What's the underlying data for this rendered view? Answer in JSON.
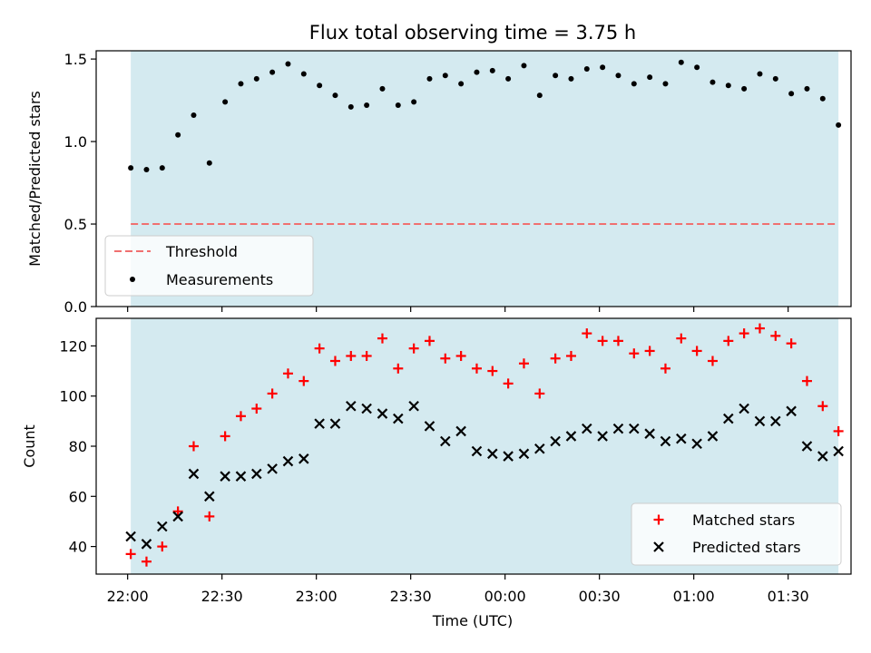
{
  "chart_data": [
    {
      "panel": "top",
      "type": "scatter",
      "title": "Flux total observing time = 3.75 h",
      "ylabel": "Matched/Predicted stars",
      "xlabel": "",
      "x_unit": "time (UTC)",
      "xlim": [
        "21:50",
        "01:50"
      ],
      "ylim": [
        0,
        1.55
      ],
      "yticks": [
        "0.0",
        "0.5",
        "1.0",
        "1.5"
      ],
      "ytick_values": [
        0,
        0.5,
        1.0,
        1.5
      ],
      "xtick_labels_shown": false,
      "shaded_span": {
        "start": "22:01",
        "end": "01:46",
        "color": "#d4eaf0"
      },
      "threshold": {
        "name": "Threshold",
        "value": 0.5,
        "color": "#f07070",
        "style": "dashed"
      },
      "series": [
        {
          "name": "Measurements",
          "color": "#000000",
          "marker": "dot",
          "x": [
            "22:01",
            "22:06",
            "22:11",
            "22:16",
            "22:21",
            "22:26",
            "22:31",
            "22:36",
            "22:41",
            "22:46",
            "22:51",
            "22:56",
            "23:01",
            "23:06",
            "23:11",
            "23:16",
            "23:21",
            "23:26",
            "23:31",
            "23:36",
            "23:41",
            "23:46",
            "23:51",
            "23:56",
            "00:01",
            "00:06",
            "00:11",
            "00:16",
            "00:21",
            "00:26",
            "00:31",
            "00:36",
            "00:41",
            "00:46",
            "00:51",
            "00:56",
            "01:01",
            "01:06",
            "01:11",
            "01:16",
            "01:21",
            "01:26",
            "01:31",
            "01:36",
            "01:41",
            "01:46"
          ],
          "y": [
            0.84,
            0.83,
            0.84,
            1.04,
            1.16,
            0.87,
            1.24,
            1.35,
            1.38,
            1.42,
            1.47,
            1.41,
            1.34,
            1.28,
            1.21,
            1.22,
            1.32,
            1.22,
            1.24,
            1.38,
            1.4,
            1.35,
            1.42,
            1.43,
            1.38,
            1.46,
            1.28,
            1.4,
            1.38,
            1.44,
            1.45,
            1.4,
            1.35,
            1.39,
            1.35,
            1.48,
            1.45,
            1.36,
            1.34,
            1.32,
            1.41,
            1.38,
            1.29,
            1.32,
            1.26,
            1.1
          ]
        }
      ],
      "legend": {
        "placement": "lower-left",
        "entries": [
          "Threshold",
          "Measurements"
        ]
      },
      "grid": false
    },
    {
      "panel": "bottom",
      "type": "scatter",
      "title": "",
      "ylabel": "Count",
      "xlabel": "Time (UTC)",
      "xlim": [
        "21:50",
        "01:50"
      ],
      "ylim": [
        29,
        131
      ],
      "yticks": [
        "40",
        "60",
        "80",
        "100",
        "120"
      ],
      "ytick_values": [
        40,
        60,
        80,
        100,
        120
      ],
      "xticks": [
        "22:00",
        "22:30",
        "23:00",
        "23:30",
        "00:00",
        "00:30",
        "01:00",
        "01:30"
      ],
      "shaded_span": {
        "start": "22:01",
        "end": "01:46",
        "color": "#d4eaf0"
      },
      "series": [
        {
          "name": "Matched stars",
          "color": "#ff0000",
          "marker": "plus",
          "x": [
            "22:01",
            "22:06",
            "22:11",
            "22:16",
            "22:21",
            "22:26",
            "22:31",
            "22:36",
            "22:41",
            "22:46",
            "22:51",
            "22:56",
            "23:01",
            "23:06",
            "23:11",
            "23:16",
            "23:21",
            "23:26",
            "23:31",
            "23:36",
            "23:41",
            "23:46",
            "23:51",
            "23:56",
            "00:01",
            "00:06",
            "00:11",
            "00:16",
            "00:21",
            "00:26",
            "00:31",
            "00:36",
            "00:41",
            "00:46",
            "00:51",
            "00:56",
            "01:01",
            "01:06",
            "01:11",
            "01:16",
            "01:21",
            "01:26",
            "01:31",
            "01:36",
            "01:41",
            "01:46"
          ],
          "y": [
            37,
            34,
            40,
            54,
            80,
            52,
            84,
            92,
            95,
            101,
            109,
            106,
            119,
            114,
            116,
            116,
            123,
            111,
            119,
            122,
            115,
            116,
            111,
            110,
            105,
            113,
            101,
            115,
            116,
            125,
            122,
            122,
            117,
            118,
            111,
            123,
            118,
            114,
            122,
            125,
            127,
            124,
            121,
            106,
            96,
            86
          ]
        },
        {
          "name": "Predicted stars",
          "color": "#000000",
          "marker": "x",
          "x": [
            "22:01",
            "22:06",
            "22:11",
            "22:16",
            "22:21",
            "22:26",
            "22:31",
            "22:36",
            "22:41",
            "22:46",
            "22:51",
            "22:56",
            "23:01",
            "23:06",
            "23:11",
            "23:16",
            "23:21",
            "23:26",
            "23:31",
            "23:36",
            "23:41",
            "23:46",
            "23:51",
            "23:56",
            "00:01",
            "00:06",
            "00:11",
            "00:16",
            "00:21",
            "00:26",
            "00:31",
            "00:36",
            "00:41",
            "00:46",
            "00:51",
            "00:56",
            "01:01",
            "01:06",
            "01:11",
            "01:16",
            "01:21",
            "01:26",
            "01:31",
            "01:36",
            "01:41",
            "01:46"
          ],
          "y": [
            44,
            41,
            48,
            52,
            69,
            60,
            68,
            68,
            69,
            71,
            74,
            75,
            89,
            89,
            96,
            95,
            93,
            91,
            96,
            88,
            82,
            86,
            78,
            77,
            76,
            77,
            79,
            82,
            84,
            87,
            84,
            87,
            87,
            85,
            82,
            83,
            81,
            84,
            91,
            95,
            90,
            90,
            94,
            80,
            76,
            78
          ]
        }
      ],
      "legend": {
        "placement": "lower-right",
        "entries": [
          "Matched stars",
          "Predicted stars"
        ]
      },
      "grid": false
    }
  ]
}
